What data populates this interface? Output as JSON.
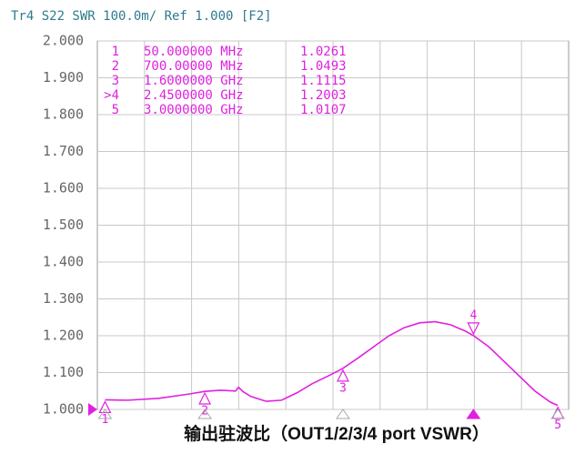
{
  "chart_data": {
    "type": "line",
    "header": "Tr4 S22 SWR 100.0m/ Ref 1.000 [F2]",
    "caption": "输出驻波比（OUT1/2/3/4 port VSWR）",
    "color": "#e020e0",
    "grid": true,
    "xlim": [
      0,
      3.07
    ],
    "ylim": [
      1,
      2
    ],
    "yticks": [
      {
        "value": 1.0,
        "label": "1.000"
      },
      {
        "value": 1.1,
        "label": "1.100"
      },
      {
        "value": 1.2,
        "label": "1.200"
      },
      {
        "value": 1.3,
        "label": "1.300"
      },
      {
        "value": 1.4,
        "label": "1.400"
      },
      {
        "value": 1.5,
        "label": "1.500"
      },
      {
        "value": 1.6,
        "label": "1.600"
      },
      {
        "value": 1.7,
        "label": "1.700"
      },
      {
        "value": 1.8,
        "label": "1.800"
      },
      {
        "value": 1.9,
        "label": "1.900"
      },
      {
        "value": 2.0,
        "label": "2.000"
      }
    ],
    "x": [
      0.05,
      0.2,
      0.4,
      0.6,
      0.7,
      0.8,
      0.9,
      0.92,
      0.95,
      1.0,
      1.1,
      1.2,
      1.3,
      1.4,
      1.5,
      1.6,
      1.7,
      1.8,
      1.9,
      2.0,
      2.1,
      2.2,
      2.3,
      2.4,
      2.45,
      2.55,
      2.65,
      2.75,
      2.85,
      2.95,
      3.0
    ],
    "values": [
      1.026,
      1.025,
      1.03,
      1.042,
      1.049,
      1.052,
      1.05,
      1.06,
      1.048,
      1.035,
      1.022,
      1.025,
      1.045,
      1.07,
      1.09,
      1.1115,
      1.14,
      1.17,
      1.2,
      1.222,
      1.235,
      1.238,
      1.23,
      1.212,
      1.2003,
      1.17,
      1.13,
      1.09,
      1.05,
      1.02,
      1.0107
    ],
    "markers": [
      {
        "name": "1",
        "label": "1",
        "freq": 0.05,
        "freq_label": "50.000000 MHz",
        "value": 1.0261
      },
      {
        "name": "2",
        "label": "2",
        "freq": 0.7,
        "freq_label": "700.00000 MHz",
        "value": 1.0493
      },
      {
        "name": "3",
        "label": "3",
        "freq": 1.6,
        "freq_label": "1.6000000 GHz",
        "value": 1.1115
      },
      {
        "name": ">4",
        "label": "4",
        "freq": 2.45,
        "freq_label": "2.4500000 GHz",
        "value": 1.2003
      },
      {
        "name": "5",
        "label": "5",
        "freq": 3.0,
        "freq_label": "3.0000000 GHz",
        "value": 1.0107
      }
    ],
    "active_marker": 3
  }
}
